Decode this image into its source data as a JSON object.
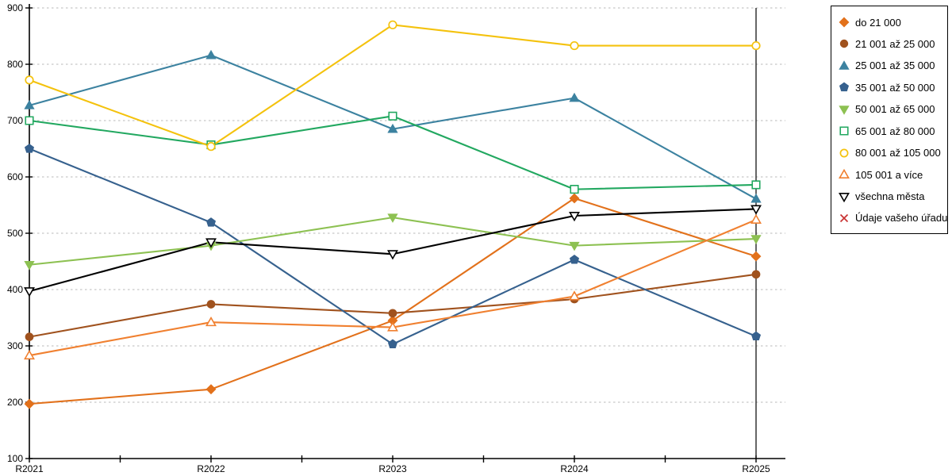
{
  "chart_data": {
    "type": "line",
    "title": "",
    "xlabel": "",
    "ylabel": "",
    "categories": [
      "R2021",
      "R2022",
      "R2023",
      "R2024",
      "R2025"
    ],
    "y_ticks": [
      100,
      200,
      300,
      400,
      500,
      600,
      700,
      800,
      900
    ],
    "ylim": [
      100,
      900
    ],
    "grid": "horizontal-dashed",
    "legend_position": "right",
    "series": [
      {
        "name": "do 21 000",
        "marker": "diamond",
        "style": "filled",
        "color": "#E2711B",
        "values": [
          197,
          223,
          345,
          562,
          459
        ]
      },
      {
        "name": "21 001 až 25 000",
        "marker": "circle",
        "style": "filled",
        "color": "#A0521E",
        "values": [
          316,
          374,
          358,
          383,
          427
        ]
      },
      {
        "name": "25 001 až 35 000",
        "marker": "triangle-up",
        "style": "filled",
        "color": "#3C82A0",
        "values": [
          727,
          816,
          685,
          740,
          561
        ]
      },
      {
        "name": "35 001 až 50 000",
        "marker": "pentagon",
        "style": "filled",
        "color": "#36618E",
        "values": [
          650,
          519,
          303,
          453,
          317
        ]
      },
      {
        "name": "50 001 až 65 000",
        "marker": "triangle-down",
        "style": "filled",
        "color": "#8DC152",
        "values": [
          444,
          478,
          528,
          478,
          490
        ]
      },
      {
        "name": "65 001 až 80 000",
        "marker": "square",
        "style": "open",
        "color": "#22A860",
        "values": [
          700,
          657,
          708,
          578,
          586
        ]
      },
      {
        "name": "80 001 až 105 000",
        "marker": "circle",
        "style": "open",
        "color": "#F4C20D",
        "values": [
          772,
          654,
          870,
          833,
          833
        ]
      },
      {
        "name": "105 001 a více",
        "marker": "triangle-up",
        "style": "open",
        "color": "#F08030",
        "values": [
          283,
          342,
          333,
          388,
          524
        ]
      },
      {
        "name": "všechna města",
        "marker": "triangle-down",
        "style": "open",
        "color": "#000000",
        "values": [
          397,
          484,
          463,
          531,
          543
        ]
      },
      {
        "name": "Údaje vašeho úřadu",
        "marker": "x",
        "style": "open",
        "color": "#C83232",
        "values": []
      }
    ],
    "colors": {
      "grid": "#b8b8b8",
      "axis": "#000000"
    }
  }
}
